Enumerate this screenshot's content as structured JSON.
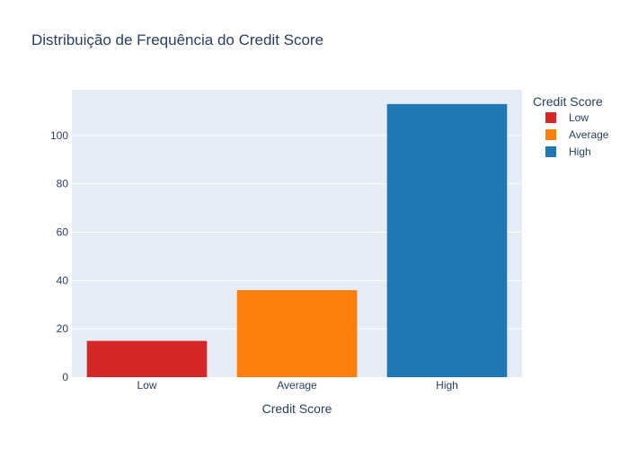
{
  "chart_data": {
    "type": "bar",
    "title": "Distribuição de Frequência do Credit Score",
    "xlabel": "Credit Score",
    "ylabel": "",
    "categories": [
      "Low",
      "Average",
      "High"
    ],
    "values": [
      15,
      36,
      113
    ],
    "colors": [
      "#d62728",
      "#ff7f0e",
      "#1f77b4"
    ],
    "ylim": [
      0,
      118.9
    ],
    "yticks": [
      0,
      20,
      40,
      60,
      80,
      100
    ],
    "grid": true,
    "plot_bgcolor": "#e5ecf6",
    "legend": {
      "title": "Credit Score",
      "placement": "right",
      "entries": [
        "Low",
        "Average",
        "High"
      ]
    }
  }
}
